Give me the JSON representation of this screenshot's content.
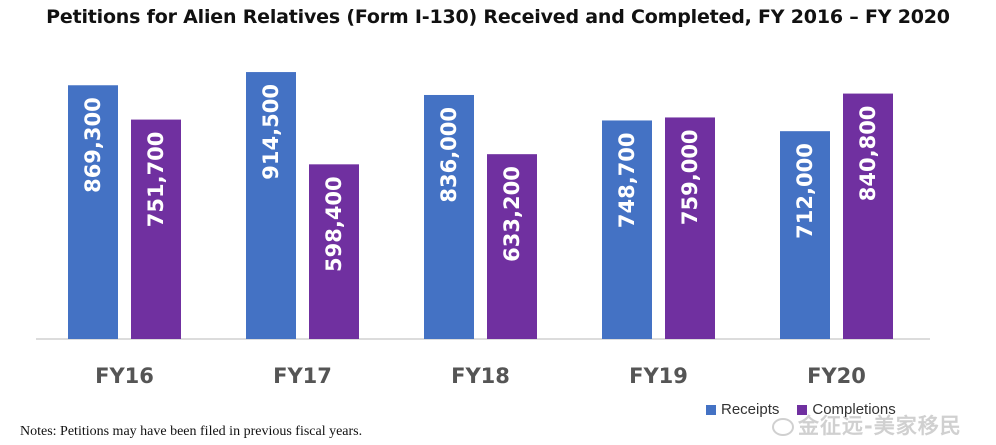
{
  "chart_data": {
    "type": "bar",
    "title": "Petitions for Alien Relatives (Form I-130) Received and Completed, FY 2016 – FY 2020",
    "categories": [
      "FY16",
      "FY17",
      "FY18",
      "FY19",
      "FY20"
    ],
    "series": [
      {
        "name": "Receipts",
        "color": "#4472c4",
        "values": [
          869300,
          914500,
          836000,
          748700,
          712000
        ],
        "labels": [
          "869,300",
          "914,500",
          "836,000",
          "748,700",
          "712,000"
        ]
      },
      {
        "name": "Completions",
        "color": "#7030a0",
        "values": [
          751700,
          598400,
          633200,
          759000,
          840800
        ],
        "labels": [
          "751,700",
          "598,400",
          "633,200",
          "759,000",
          "840,800"
        ]
      }
    ],
    "xlabel": "",
    "ylabel": "",
    "ylim": [
      0,
      925000
    ],
    "grid": false,
    "legend": "bottom-right"
  },
  "notes": "Notes:  Petitions may have been filed in previous fiscal years.",
  "watermark": "金征远-美家移民"
}
